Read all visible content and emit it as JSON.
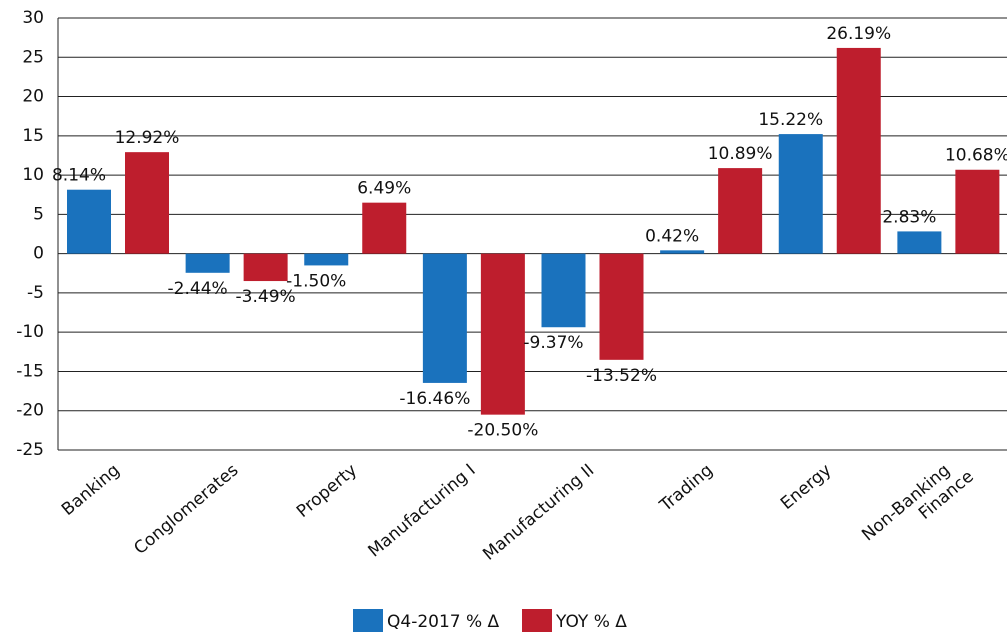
{
  "chart_data": {
    "type": "bar",
    "categories": [
      "Banking",
      "Conglomerates",
      "Property",
      "Manufacturing I",
      "Manufacturing II",
      "Trading",
      "Energy",
      "Non-Banking\nFinance"
    ],
    "series": [
      {
        "name": "Q4-2017 % Δ",
        "color": "#1a72bd",
        "values": [
          8.14,
          -2.44,
          -1.5,
          -16.46,
          -9.37,
          0.42,
          15.22,
          2.83
        ],
        "value_labels": [
          "8.14%",
          "-2.44%",
          "-1.50%",
          "-16.46%",
          "-9.37%",
          "0.42%",
          "15.22%",
          "2.83%"
        ]
      },
      {
        "name": "YOY % Δ",
        "color": "#be1e2d",
        "values": [
          12.92,
          -3.49,
          6.49,
          -20.5,
          -13.52,
          10.89,
          26.19,
          10.68
        ],
        "value_labels": [
          "12.92%",
          "-3.49%",
          "6.49%",
          "-20.50%",
          "-13.52%",
          "10.89%",
          "26.19%",
          "10.68%"
        ]
      }
    ],
    "ylim": [
      -25,
      30
    ],
    "yticks": [
      -25,
      -20,
      -15,
      -10,
      -5,
      0,
      5,
      10,
      15,
      20,
      25,
      30
    ],
    "grid": true,
    "legend": "bottom"
  }
}
